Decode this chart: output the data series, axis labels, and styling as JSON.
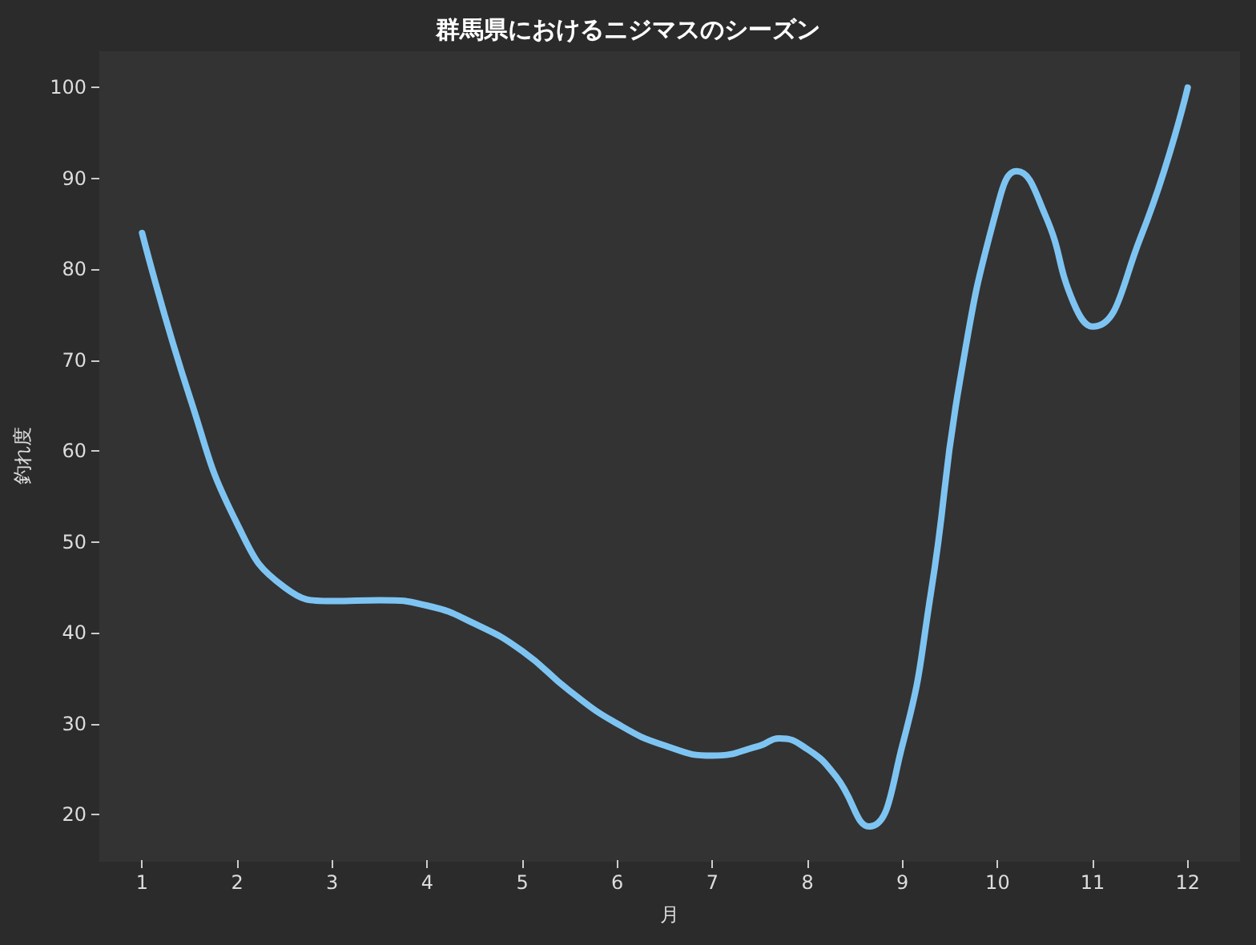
{
  "chart_data": {
    "type": "line",
    "title": "群馬県におけるニジマスのシーズン",
    "xlabel": "月",
    "ylabel": "釣れ度",
    "x": [
      1,
      1.5,
      2,
      2.5,
      3,
      3.5,
      4,
      4.5,
      5,
      5.5,
      6,
      6.5,
      7,
      7.5,
      7.7,
      8,
      8.3,
      8.65,
      9,
      9.3,
      9.6,
      10,
      10.2,
      10.5,
      10.8,
      11,
      11.5,
      12
    ],
    "series": [
      {
        "color": "#7ec4f2",
        "values": [
          84,
          66,
          52,
          45,
          43.5,
          43.6,
          43,
          41,
          38,
          33.6,
          30,
          27.6,
          26.5,
          27.6,
          28.4,
          27.2,
          24.2,
          18.7,
          27.7,
          44.5,
          67.5,
          87,
          90.8,
          86,
          76.3,
          73.7,
          83.4,
          100
        ]
      }
    ],
    "xlim": [
      0.55,
      12.55
    ],
    "xticks": [
      1,
      2,
      3,
      4,
      5,
      6,
      7,
      8,
      9,
      10,
      11,
      12
    ],
    "ylim": [
      15,
      104
    ],
    "yticks": [
      20,
      30,
      40,
      50,
      60,
      70,
      80,
      90,
      100
    ],
    "grid": false,
    "marker": "none",
    "line_style": "solid"
  }
}
